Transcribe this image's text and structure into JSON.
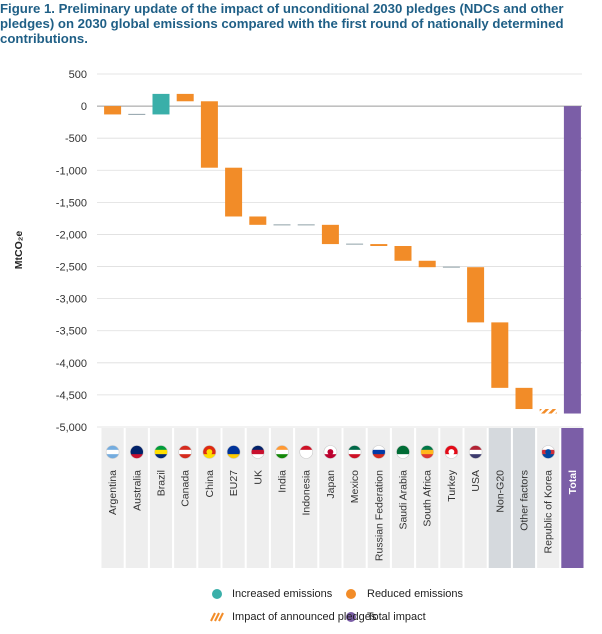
{
  "title": "Figure 1. Preliminary update of the impact of unconditional 2030 pledges (NDCs and other pledges) on 2030 global emissions compared with the first round of nationally determined contributions.",
  "colors": {
    "increased": "#3aafa9",
    "reduced": "#f28c28",
    "total": "#7b5ea7",
    "grid": "#dedede",
    "label_light": "#eeeeee",
    "label_dark": "#d5d9dd"
  },
  "legend": {
    "increased": "Increased emissions",
    "reduced": "Reduced emissions",
    "announced": "Impact of announced pledges",
    "total": "Total impact"
  },
  "chart_data": {
    "type": "waterfall",
    "ylabel": "MtCO₂e",
    "ylim": [
      -5000,
      500
    ],
    "yticks": [
      500,
      0,
      -500,
      -1000,
      -1500,
      -2000,
      -2500,
      -3000,
      -3500,
      -4000,
      -4500,
      -5000
    ],
    "ytick_labels": [
      "500",
      "0",
      "-500",
      "-1,000",
      "-1,500",
      "-2,000",
      "-2,500",
      "-3,000",
      "-3,500",
      "-4,000",
      "-4,500",
      "-5,000"
    ],
    "categories": [
      {
        "label": "Argentina",
        "start": 0,
        "end": -130,
        "kind": "reduced",
        "flag": "AR"
      },
      {
        "label": "Australia",
        "start": -130,
        "end": -130,
        "kind": "none",
        "flag": "AU"
      },
      {
        "label": "Brazil",
        "start": -130,
        "end": 190,
        "kind": "increased",
        "flag": "BR"
      },
      {
        "label": "Canada",
        "start": 190,
        "end": 75,
        "kind": "reduced",
        "flag": "CA"
      },
      {
        "label": "China",
        "start": 75,
        "end": -960,
        "kind": "reduced",
        "flag": "CN"
      },
      {
        "label": "EU27",
        "start": -960,
        "end": -1720,
        "kind": "reduced",
        "flag": "EU"
      },
      {
        "label": "UK",
        "start": -1720,
        "end": -1850,
        "kind": "reduced",
        "flag": "GB"
      },
      {
        "label": "India",
        "start": -1850,
        "end": -1850,
        "kind": "none",
        "flag": "IN"
      },
      {
        "label": "Indonesia",
        "start": -1850,
        "end": -1850,
        "kind": "none",
        "flag": "ID"
      },
      {
        "label": "Japan",
        "start": -1850,
        "end": -2150,
        "kind": "reduced",
        "flag": "JP"
      },
      {
        "label": "Mexico",
        "start": -2150,
        "end": -2150,
        "kind": "none",
        "flag": "MX"
      },
      {
        "label": "Russian Federation",
        "start": -2150,
        "end": -2180,
        "kind": "reduced",
        "flag": "RU"
      },
      {
        "label": "Saudi Arabia",
        "start": -2180,
        "end": -2410,
        "kind": "reduced",
        "flag": "SA"
      },
      {
        "label": "South Africa",
        "start": -2410,
        "end": -2510,
        "kind": "reduced",
        "flag": "ZA"
      },
      {
        "label": "Turkey",
        "start": -2510,
        "end": -2510,
        "kind": "none",
        "flag": "TR"
      },
      {
        "label": "USA",
        "start": -2510,
        "end": -3370,
        "kind": "reduced",
        "flag": "US"
      },
      {
        "label": "Non-G20",
        "start": -3370,
        "end": -4390,
        "kind": "reduced",
        "flag": null
      },
      {
        "label": "Other factors",
        "start": -4390,
        "end": -4720,
        "kind": "reduced",
        "flag": null
      },
      {
        "label": "Republic of Korea",
        "start": -4720,
        "end": -4790,
        "kind": "announced",
        "flag": "KR"
      },
      {
        "label": "Total",
        "start": 0,
        "end": -4790,
        "kind": "total",
        "flag": null
      }
    ]
  }
}
